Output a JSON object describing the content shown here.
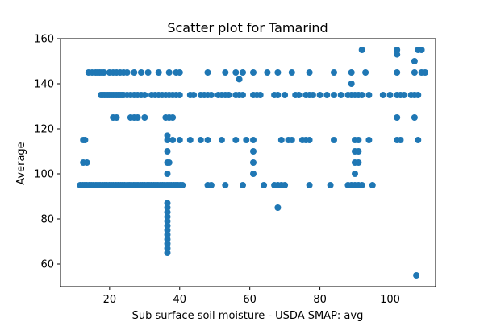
{
  "chart_data": {
    "type": "scatter",
    "title": "Scatter plot for Tamarind",
    "xlabel": "Sub surface soil moisture - USDA SMAP: avg",
    "ylabel": "Average",
    "xlim": [
      6,
      113
    ],
    "ylim": [
      50,
      160
    ],
    "xticks": [
      20,
      40,
      60,
      80,
      100
    ],
    "yticks": [
      60,
      80,
      100,
      120,
      140,
      160
    ],
    "grid": false,
    "legend": "none",
    "color": "#1f77b4",
    "series": [
      {
        "points": [
          [
            11.6,
            95
          ],
          [
            12.3,
            95
          ],
          [
            12.9,
            95
          ],
          [
            13.5,
            95
          ],
          [
            14.2,
            95
          ],
          [
            14.8,
            95
          ],
          [
            15.4,
            95
          ],
          [
            16.1,
            95
          ],
          [
            16.7,
            95
          ],
          [
            17.3,
            95
          ],
          [
            18.0,
            95
          ],
          [
            18.6,
            95
          ],
          [
            19.2,
            95
          ],
          [
            19.9,
            95
          ],
          [
            20.5,
            95
          ],
          [
            21.1,
            95
          ],
          [
            21.8,
            95
          ],
          [
            22.4,
            95
          ],
          [
            23.1,
            95
          ],
          [
            23.7,
            95
          ],
          [
            24.3,
            95
          ],
          [
            25.0,
            95
          ],
          [
            25.6,
            95
          ],
          [
            26.2,
            95
          ],
          [
            26.9,
            95
          ],
          [
            27.5,
            95
          ],
          [
            28.1,
            95
          ],
          [
            28.8,
            95
          ],
          [
            29.4,
            95
          ],
          [
            30.0,
            95
          ],
          [
            30.7,
            95
          ],
          [
            31.3,
            95
          ],
          [
            31.9,
            95
          ],
          [
            32.6,
            95
          ],
          [
            33.2,
            95
          ],
          [
            33.8,
            95
          ],
          [
            34.5,
            95
          ],
          [
            35.1,
            95
          ],
          [
            35.7,
            95
          ],
          [
            36.4,
            95
          ],
          [
            37.0,
            95
          ],
          [
            37.6,
            95
          ],
          [
            38.3,
            95
          ],
          [
            38.9,
            95
          ],
          [
            39.5,
            95
          ],
          [
            40.2,
            95
          ],
          [
            40.8,
            95
          ],
          [
            48,
            95
          ],
          [
            49,
            95
          ],
          [
            53,
            95
          ],
          [
            58,
            95
          ],
          [
            64,
            95
          ],
          [
            68,
            95
          ],
          [
            69,
            95
          ],
          [
            70,
            95
          ],
          [
            77,
            95
          ],
          [
            83,
            95
          ],
          [
            88,
            95
          ],
          [
            89,
            95
          ],
          [
            90,
            95
          ],
          [
            91,
            95
          ],
          [
            92,
            95
          ],
          [
            95,
            95
          ],
          [
            12.5,
            105
          ],
          [
            13.5,
            105
          ],
          [
            12.5,
            115
          ],
          [
            13,
            115
          ],
          [
            14,
            145
          ],
          [
            15,
            145
          ],
          [
            16,
            145
          ],
          [
            16.6,
            145
          ],
          [
            17.2,
            145
          ],
          [
            17.8,
            145
          ],
          [
            18.4,
            145
          ],
          [
            20,
            145
          ],
          [
            21,
            145
          ],
          [
            22,
            145
          ],
          [
            23,
            145
          ],
          [
            24,
            145
          ],
          [
            25,
            145
          ],
          [
            27,
            145
          ],
          [
            29,
            145
          ],
          [
            31,
            145
          ],
          [
            34,
            145
          ],
          [
            37,
            145
          ],
          [
            39,
            145
          ],
          [
            40,
            145
          ],
          [
            48,
            145
          ],
          [
            53,
            145
          ],
          [
            56,
            145
          ],
          [
            58,
            145
          ],
          [
            61,
            145
          ],
          [
            65,
            145
          ],
          [
            68,
            145
          ],
          [
            72,
            145
          ],
          [
            77,
            145
          ],
          [
            84,
            145
          ],
          [
            89,
            145
          ],
          [
            93,
            145
          ],
          [
            102,
            145
          ],
          [
            107,
            145
          ],
          [
            109,
            145
          ],
          [
            110,
            145
          ],
          [
            17.5,
            135
          ],
          [
            18,
            135
          ],
          [
            18.5,
            135
          ],
          [
            19,
            135
          ],
          [
            19.5,
            135
          ],
          [
            20,
            135
          ],
          [
            20.5,
            135
          ],
          [
            21,
            135
          ],
          [
            21.5,
            135
          ],
          [
            22,
            135
          ],
          [
            22.5,
            135
          ],
          [
            23,
            135
          ],
          [
            23.5,
            135
          ],
          [
            24,
            135
          ],
          [
            25,
            135
          ],
          [
            26,
            135
          ],
          [
            27,
            135
          ],
          [
            28,
            135
          ],
          [
            29,
            135
          ],
          [
            30,
            135
          ],
          [
            32,
            135
          ],
          [
            33,
            135
          ],
          [
            34,
            135
          ],
          [
            35,
            135
          ],
          [
            36,
            135
          ],
          [
            37,
            135
          ],
          [
            38,
            135
          ],
          [
            39,
            135
          ],
          [
            40,
            135
          ],
          [
            43,
            135
          ],
          [
            44,
            135
          ],
          [
            46,
            135
          ],
          [
            47,
            135
          ],
          [
            48,
            135
          ],
          [
            49,
            135
          ],
          [
            51,
            135
          ],
          [
            52,
            135
          ],
          [
            53,
            135
          ],
          [
            54,
            135
          ],
          [
            56,
            135
          ],
          [
            57,
            135
          ],
          [
            58,
            135
          ],
          [
            61,
            135
          ],
          [
            62,
            135
          ],
          [
            63,
            135
          ],
          [
            67,
            135
          ],
          [
            68,
            135
          ],
          [
            70,
            135
          ],
          [
            73,
            135
          ],
          [
            74,
            135
          ],
          [
            76,
            135
          ],
          [
            77,
            135
          ],
          [
            78,
            135
          ],
          [
            80,
            135
          ],
          [
            82,
            135
          ],
          [
            84,
            135
          ],
          [
            86,
            135
          ],
          [
            88,
            135
          ],
          [
            89,
            135
          ],
          [
            90,
            135
          ],
          [
            91,
            135
          ],
          [
            92,
            135
          ],
          [
            94,
            135
          ],
          [
            98,
            135
          ],
          [
            100,
            135
          ],
          [
            102,
            135
          ],
          [
            103,
            135
          ],
          [
            104,
            135
          ],
          [
            106,
            135
          ],
          [
            107,
            135
          ],
          [
            108,
            135
          ],
          [
            21,
            125
          ],
          [
            22,
            125
          ],
          [
            26,
            125
          ],
          [
            27,
            125
          ],
          [
            28,
            125
          ],
          [
            30,
            125
          ],
          [
            36,
            125
          ],
          [
            37,
            125
          ],
          [
            38,
            125
          ],
          [
            102,
            125
          ],
          [
            107,
            125
          ],
          [
            36.5,
            117
          ],
          [
            36.5,
            115
          ],
          [
            38,
            115
          ],
          [
            40,
            115
          ],
          [
            43,
            115
          ],
          [
            46,
            115
          ],
          [
            48,
            115
          ],
          [
            52,
            115
          ],
          [
            56,
            115
          ],
          [
            59,
            115
          ],
          [
            61,
            115
          ],
          [
            69,
            115
          ],
          [
            71,
            115
          ],
          [
            72,
            115
          ],
          [
            75,
            115
          ],
          [
            76,
            115
          ],
          [
            77,
            115
          ],
          [
            84,
            115
          ],
          [
            90,
            115
          ],
          [
            91,
            115
          ],
          [
            94,
            115
          ],
          [
            102,
            115
          ],
          [
            103,
            115
          ],
          [
            108,
            115
          ],
          [
            36.5,
            110
          ],
          [
            61,
            110
          ],
          [
            90,
            110
          ],
          [
            91,
            110
          ],
          [
            36.5,
            105
          ],
          [
            37,
            105
          ],
          [
            61,
            105
          ],
          [
            90,
            105
          ],
          [
            91,
            105
          ],
          [
            36.5,
            100
          ],
          [
            61,
            100
          ],
          [
            90,
            100
          ],
          [
            36.5,
            87
          ],
          [
            36.5,
            85
          ],
          [
            36.5,
            83
          ],
          [
            36.5,
            81
          ],
          [
            36.5,
            79
          ],
          [
            36.5,
            77
          ],
          [
            36.5,
            75
          ],
          [
            36.5,
            73
          ],
          [
            36.5,
            71
          ],
          [
            36.5,
            69
          ],
          [
            36.5,
            67
          ],
          [
            36.5,
            65
          ],
          [
            67,
            95
          ],
          [
            68,
            85
          ],
          [
            57,
            142
          ],
          [
            89,
            140
          ],
          [
            92,
            155
          ],
          [
            102,
            155
          ],
          [
            102,
            153
          ],
          [
            107,
            150
          ],
          [
            108,
            155
          ],
          [
            109,
            155
          ],
          [
            107.5,
            55
          ]
        ]
      }
    ]
  }
}
